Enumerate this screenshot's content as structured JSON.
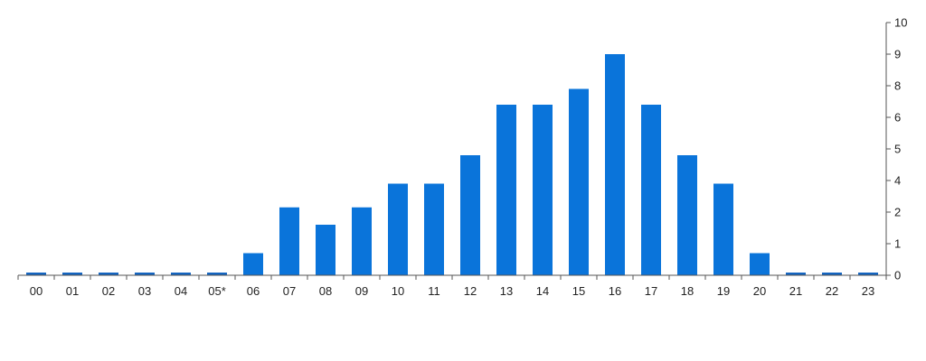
{
  "chart_data": {
    "type": "bar",
    "title": "",
    "xlabel": "",
    "ylabel": "",
    "categories": [
      "00",
      "01",
      "02",
      "03",
      "04",
      "05*",
      "06",
      "07",
      "08",
      "09",
      "10",
      "11",
      "12",
      "13",
      "14",
      "15",
      "16",
      "17",
      "18",
      "19",
      "20",
      "21",
      "22",
      "23"
    ],
    "values": [
      0,
      0,
      0,
      0,
      0,
      0,
      0.7,
      2.3,
      1.6,
      2.3,
      3.8,
      3.8,
      4.8,
      6.8,
      6.8,
      7.8,
      9,
      6.8,
      4.8,
      3.8,
      0.7,
      0,
      0,
      0
    ],
    "y_tick_labels": [
      "0",
      "1",
      "2",
      "4",
      "5",
      "6",
      "8",
      "9",
      "10"
    ],
    "y_tick_values": [
      0,
      1,
      2,
      4,
      5,
      6,
      8,
      9,
      10
    ],
    "y_axis_side": "right",
    "grid": false,
    "legend": "none",
    "colors": {
      "bar": "#0a74da",
      "zero_bar": "#1565c0",
      "axis": "#555555",
      "text": "#222222"
    }
  }
}
